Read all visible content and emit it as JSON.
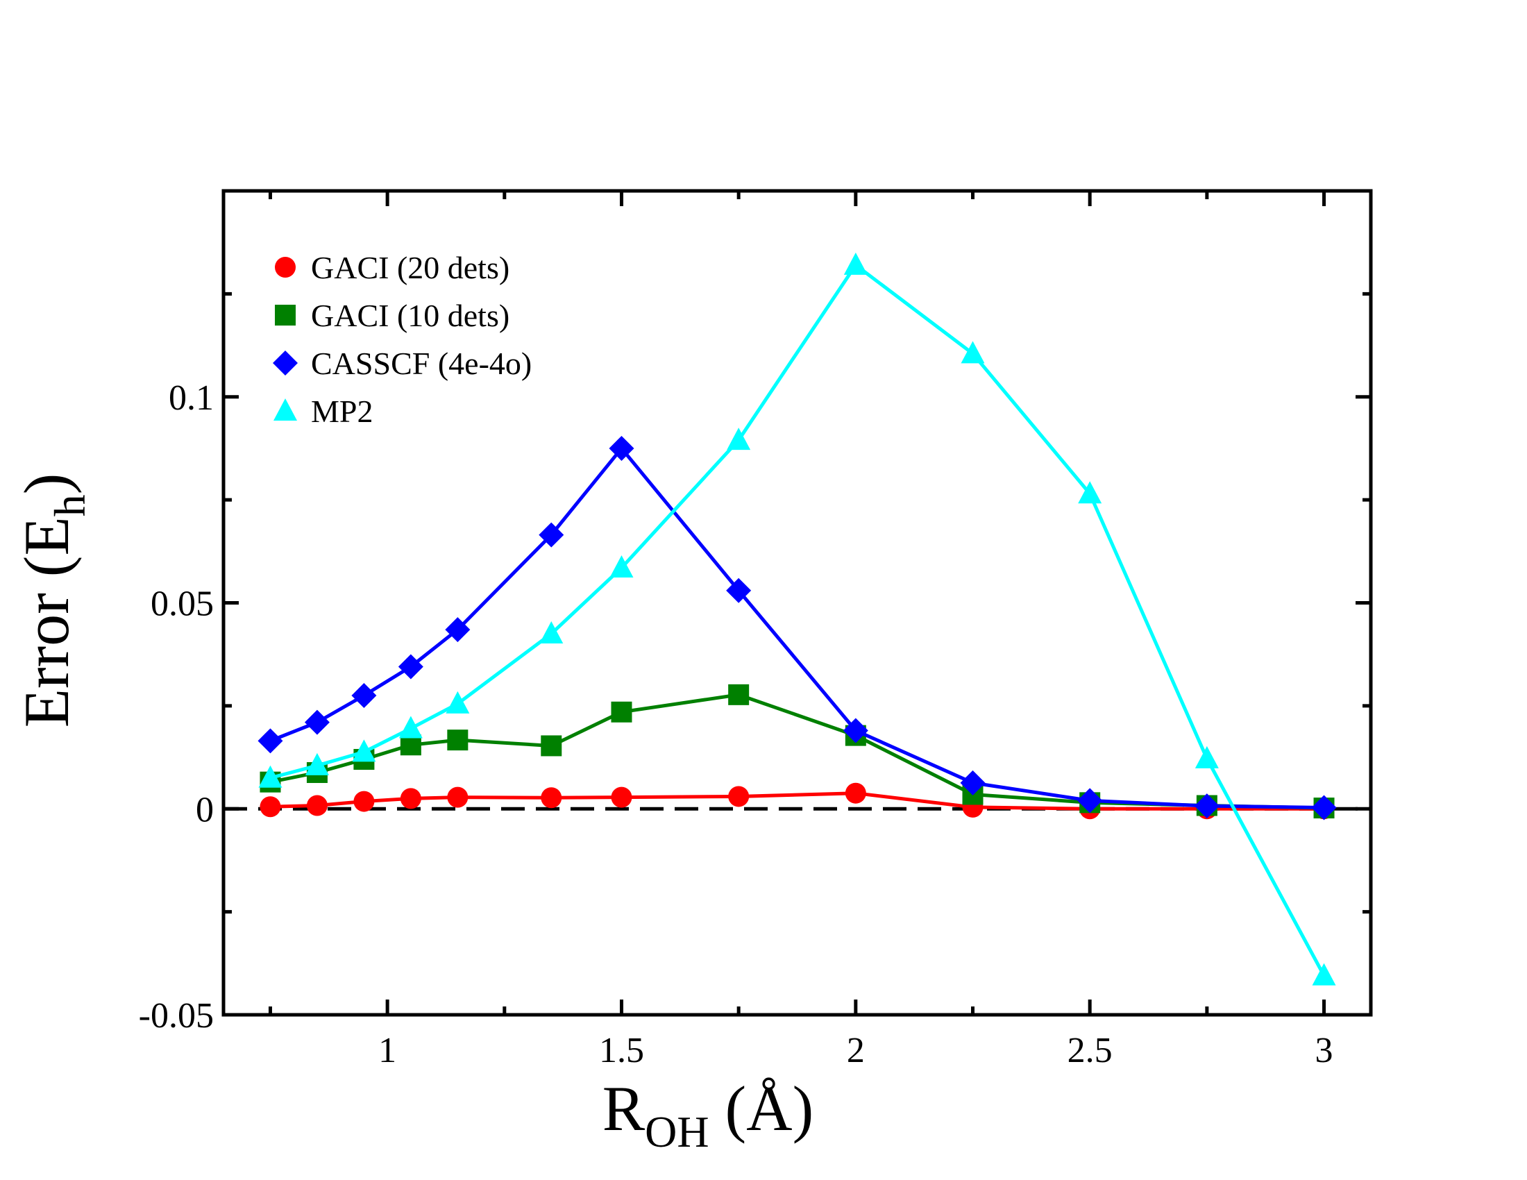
{
  "chart_data": {
    "type": "line",
    "title": "",
    "xlabel": {
      "main": "R",
      "sub": "OH",
      "suffix": " (Å)"
    },
    "ylabel": {
      "main": "Error (E",
      "sub": "h",
      "suffix": ")"
    },
    "xlim": [
      0.65,
      3.1
    ],
    "ylim": [
      -0.05,
      0.15
    ],
    "xticks": [
      1,
      1.5,
      2,
      2.5,
      3
    ],
    "xtick_labels": [
      "1",
      "1.5",
      "2",
      "2.5",
      "3"
    ],
    "xminor": [
      0.75,
      1.25,
      1.75,
      2.25,
      2.75
    ],
    "yticks": [
      -0.05,
      0,
      0.05,
      0.1
    ],
    "ytick_labels": [
      "-0.05",
      "0",
      "0.05",
      "0.1"
    ],
    "yminor": [
      -0.025,
      0.025,
      0.075,
      0.125
    ],
    "grid": false,
    "legend_position": "top-left",
    "reference_line": {
      "y": 0,
      "style": "dashed",
      "color": "#000000"
    },
    "series": [
      {
        "name": "GACI (20 dets)",
        "color": "#ff0000",
        "marker": "circle",
        "x": [
          0.75,
          0.85,
          0.95,
          1.05,
          1.15,
          1.35,
          1.5,
          1.75,
          2.0,
          2.25,
          2.5,
          2.75,
          3.0
        ],
        "y": [
          0.0005,
          0.0008,
          0.0018,
          0.0025,
          0.0028,
          0.0027,
          0.0028,
          0.003,
          0.0038,
          0.0004,
          0.0,
          0.0,
          0.0
        ]
      },
      {
        "name": "GACI (10 dets)",
        "color": "#008000",
        "marker": "square",
        "x": [
          0.75,
          0.85,
          0.95,
          1.05,
          1.15,
          1.35,
          1.5,
          1.75,
          2.0,
          2.25,
          2.5,
          2.75,
          3.0
        ],
        "y": [
          0.0065,
          0.0088,
          0.012,
          0.0155,
          0.0167,
          0.0153,
          0.0235,
          0.0277,
          0.0178,
          0.0035,
          0.0015,
          0.0008,
          0.0002
        ]
      },
      {
        "name": "CASSCF (4e-4o)",
        "color": "#0000ff",
        "marker": "diamond",
        "x": [
          0.75,
          0.85,
          0.95,
          1.05,
          1.15,
          1.35,
          1.5,
          1.75,
          2.0,
          2.25,
          2.5,
          2.75,
          3.0
        ],
        "y": [
          0.0165,
          0.021,
          0.0275,
          0.0345,
          0.0435,
          0.0665,
          0.0875,
          0.053,
          0.019,
          0.0063,
          0.002,
          0.0007,
          0.0003
        ]
      },
      {
        "name": "MP2",
        "color": "#00ffff",
        "marker": "triangle",
        "x": [
          0.75,
          0.85,
          0.95,
          1.05,
          1.15,
          1.35,
          1.5,
          1.75,
          2.0,
          2.25,
          2.5,
          2.75,
          3.0
        ],
        "y": [
          0.0075,
          0.0105,
          0.0138,
          0.0195,
          0.0255,
          0.0425,
          0.0585,
          0.0895,
          0.132,
          0.1105,
          0.0765,
          0.0122,
          -0.0405
        ]
      }
    ]
  }
}
